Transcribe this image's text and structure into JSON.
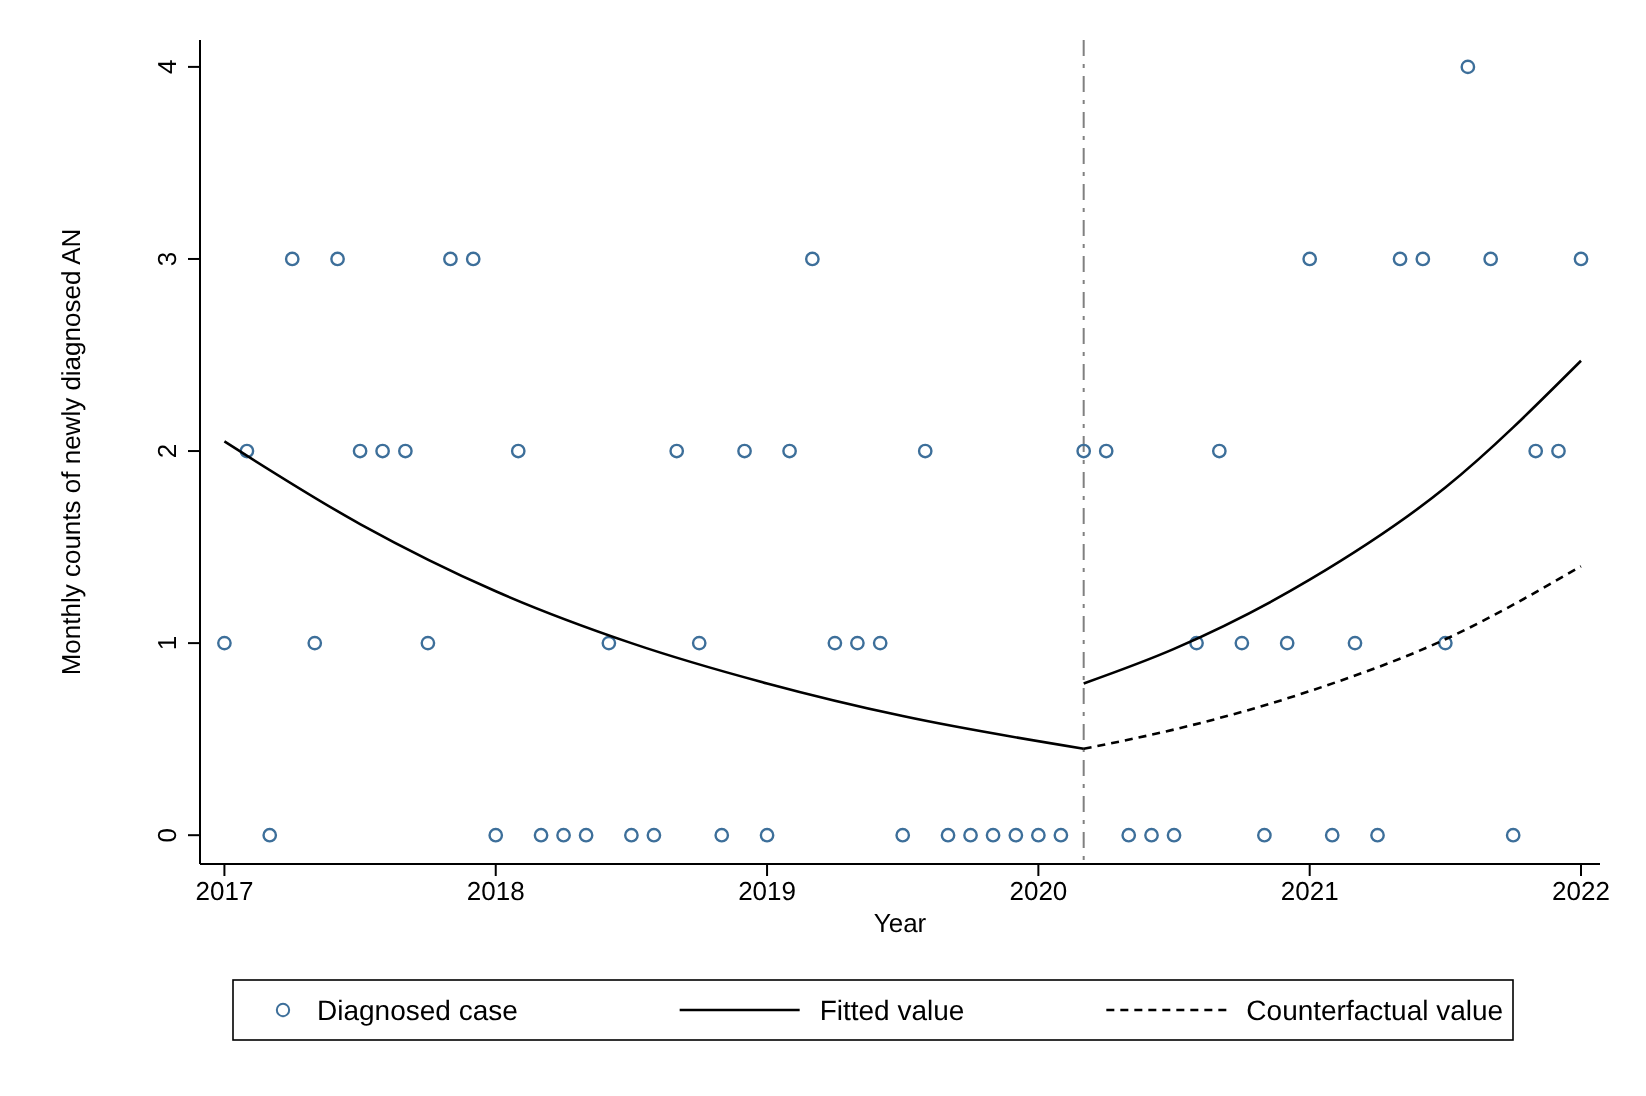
{
  "chart_data": {
    "type": "scatter",
    "xlabel": "Year",
    "ylabel": "Monthly counts of newly diagnosed AN",
    "xlim": [
      2016.91,
      2022.07
    ],
    "xticks": [
      2017,
      2018,
      2019,
      2020,
      2021,
      2022
    ],
    "ylim": [
      -0.15,
      4.14
    ],
    "yticks": [
      0,
      1,
      2,
      3,
      4
    ],
    "grid": false,
    "legend": "bottom",
    "series": [
      {
        "name": "Diagnosed case",
        "marker": "circle",
        "color": "#3d6f9a",
        "x": [
          2017,
          2017.083,
          2017.167,
          2017.25,
          2017.333,
          2017.417,
          2017.5,
          2017.583,
          2017.667,
          2017.75,
          2017.833,
          2017.917,
          2018,
          2018.083,
          2018.167,
          2018.25,
          2018.333,
          2018.417,
          2018.5,
          2018.583,
          2018.667,
          2018.75,
          2018.833,
          2018.917,
          2019,
          2019.083,
          2019.167,
          2019.25,
          2019.333,
          2019.417,
          2019.5,
          2019.583,
          2019.667,
          2019.75,
          2019.833,
          2019.917,
          2020,
          2020.083,
          2020.167,
          2020.25,
          2020.333,
          2020.417,
          2020.5,
          2020.583,
          2020.667,
          2020.75,
          2020.833,
          2020.917,
          2021,
          2021.083,
          2021.167,
          2021.25,
          2021.333,
          2021.417,
          2021.5,
          2021.583,
          2021.667,
          2021.75,
          2021.833,
          2021.917,
          2022
        ],
        "values": [
          1,
          2,
          0,
          3,
          1,
          3,
          2,
          2,
          2,
          1,
          3,
          3,
          0,
          2,
          0,
          0,
          0,
          1,
          0,
          0,
          2,
          1,
          0,
          2,
          0,
          2,
          3,
          1,
          1,
          1,
          0,
          2,
          0,
          0,
          0,
          0,
          0,
          0,
          2,
          2,
          0,
          0,
          0,
          1,
          2,
          1,
          0,
          1,
          3,
          0,
          1,
          0,
          3,
          3,
          1,
          4,
          3,
          0,
          2,
          2,
          3
        ]
      },
      {
        "name": "Fitted value",
        "type": "line",
        "line_style": "solid",
        "color": "#000000",
        "x": [
          2017,
          2017.5,
          2018,
          2018.5,
          2019,
          2019.5,
          2020.167
        ],
        "values": [
          2.05,
          1.62,
          1.27,
          1.0,
          0.79,
          0.62,
          0.45
        ]
      },
      {
        "type": "line",
        "line_style": "solid",
        "color": "#000000",
        "x": [
          2020.167,
          2020.5,
          2021,
          2021.5,
          2022
        ],
        "values": [
          0.79,
          0.97,
          1.33,
          1.81,
          2.47
        ]
      },
      {
        "name": "Counterfactual value",
        "type": "line",
        "line_style": "dashed",
        "color": "#000000",
        "x": [
          2020.167,
          2020.5,
          2021,
          2021.5,
          2022
        ],
        "values": [
          0.45,
          0.55,
          0.75,
          1.02,
          1.4
        ]
      }
    ],
    "ref_lines": [
      {
        "axis": "x",
        "value": 2020.167,
        "color": "#808080",
        "line_style": "dashdot"
      }
    ]
  }
}
